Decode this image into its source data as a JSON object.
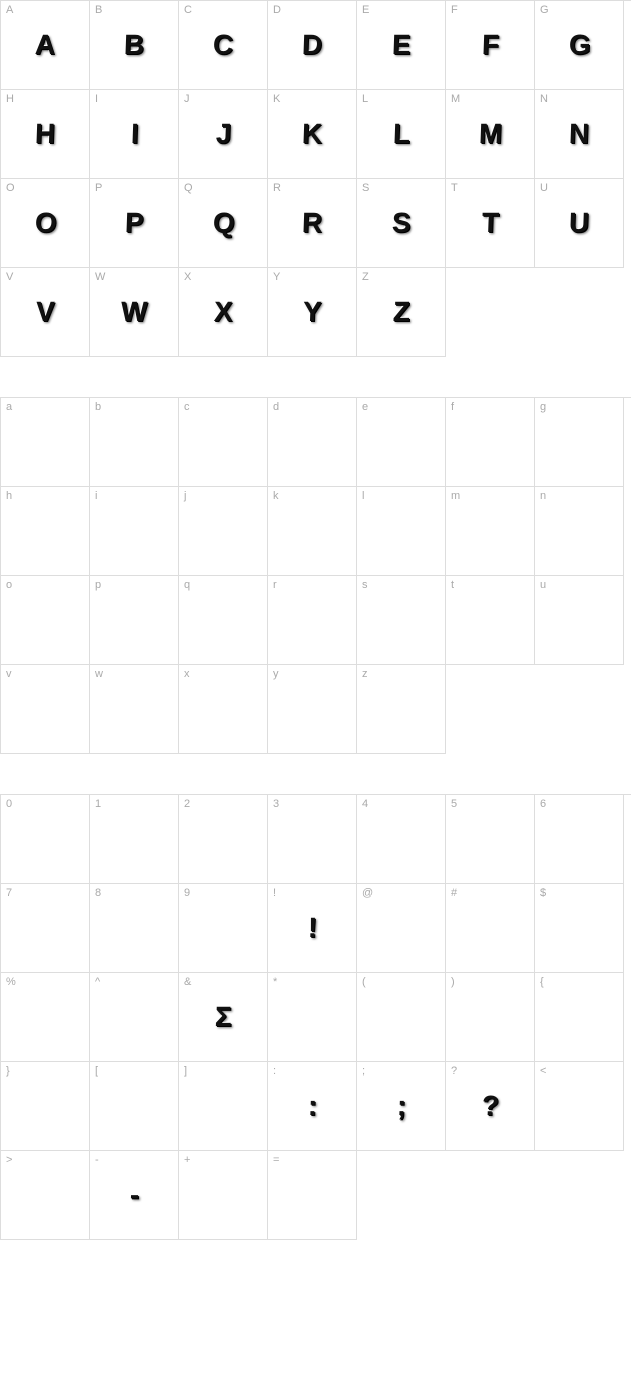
{
  "colors": {
    "border": "#dddddd",
    "label": "#aaaaaa",
    "glyph": "#111111",
    "background": "#ffffff"
  },
  "layout": {
    "columns": 7,
    "cell_size": 89,
    "label_fontsize": 11,
    "glyph_fontsize": 28,
    "section_gap": 40
  },
  "sections": [
    {
      "id": "uppercase",
      "cells": [
        {
          "label": "A",
          "glyph": "A",
          "has_glyph": true
        },
        {
          "label": "B",
          "glyph": "B",
          "has_glyph": true
        },
        {
          "label": "C",
          "glyph": "C",
          "has_glyph": true
        },
        {
          "label": "D",
          "glyph": "D",
          "has_glyph": true
        },
        {
          "label": "E",
          "glyph": "E",
          "has_glyph": true
        },
        {
          "label": "F",
          "glyph": "F",
          "has_glyph": true
        },
        {
          "label": "G",
          "glyph": "G",
          "has_glyph": true
        },
        {
          "label": "H",
          "glyph": "H",
          "has_glyph": true
        },
        {
          "label": "I",
          "glyph": "I",
          "has_glyph": true
        },
        {
          "label": "J",
          "glyph": "J",
          "has_glyph": true
        },
        {
          "label": "K",
          "glyph": "K",
          "has_glyph": true
        },
        {
          "label": "L",
          "glyph": "L",
          "has_glyph": true
        },
        {
          "label": "M",
          "glyph": "M",
          "has_glyph": true
        },
        {
          "label": "N",
          "glyph": "N",
          "has_glyph": true
        },
        {
          "label": "O",
          "glyph": "O",
          "has_glyph": true
        },
        {
          "label": "P",
          "glyph": "P",
          "has_glyph": true
        },
        {
          "label": "Q",
          "glyph": "Q",
          "has_glyph": true
        },
        {
          "label": "R",
          "glyph": "R",
          "has_glyph": true
        },
        {
          "label": "S",
          "glyph": "S",
          "has_glyph": true
        },
        {
          "label": "T",
          "glyph": "T",
          "has_glyph": true
        },
        {
          "label": "U",
          "glyph": "U",
          "has_glyph": true
        },
        {
          "label": "V",
          "glyph": "V",
          "has_glyph": true
        },
        {
          "label": "W",
          "glyph": "W",
          "has_glyph": true
        },
        {
          "label": "X",
          "glyph": "X",
          "has_glyph": true
        },
        {
          "label": "Y",
          "glyph": "Y",
          "has_glyph": true
        },
        {
          "label": "Z",
          "glyph": "Z",
          "has_glyph": true
        }
      ]
    },
    {
      "id": "lowercase",
      "cells": [
        {
          "label": "a",
          "glyph": "",
          "has_glyph": false
        },
        {
          "label": "b",
          "glyph": "",
          "has_glyph": false
        },
        {
          "label": "c",
          "glyph": "",
          "has_glyph": false
        },
        {
          "label": "d",
          "glyph": "",
          "has_glyph": false
        },
        {
          "label": "e",
          "glyph": "",
          "has_glyph": false
        },
        {
          "label": "f",
          "glyph": "",
          "has_glyph": false
        },
        {
          "label": "g",
          "glyph": "",
          "has_glyph": false
        },
        {
          "label": "h",
          "glyph": "",
          "has_glyph": false
        },
        {
          "label": "i",
          "glyph": "",
          "has_glyph": false
        },
        {
          "label": "j",
          "glyph": "",
          "has_glyph": false
        },
        {
          "label": "k",
          "glyph": "",
          "has_glyph": false
        },
        {
          "label": "l",
          "glyph": "",
          "has_glyph": false
        },
        {
          "label": "m",
          "glyph": "",
          "has_glyph": false
        },
        {
          "label": "n",
          "glyph": "",
          "has_glyph": false
        },
        {
          "label": "o",
          "glyph": "",
          "has_glyph": false
        },
        {
          "label": "p",
          "glyph": "",
          "has_glyph": false
        },
        {
          "label": "q",
          "glyph": "",
          "has_glyph": false
        },
        {
          "label": "r",
          "glyph": "",
          "has_glyph": false
        },
        {
          "label": "s",
          "glyph": "",
          "has_glyph": false
        },
        {
          "label": "t",
          "glyph": "",
          "has_glyph": false
        },
        {
          "label": "u",
          "glyph": "",
          "has_glyph": false
        },
        {
          "label": "v",
          "glyph": "",
          "has_glyph": false
        },
        {
          "label": "w",
          "glyph": "",
          "has_glyph": false
        },
        {
          "label": "x",
          "glyph": "",
          "has_glyph": false
        },
        {
          "label": "y",
          "glyph": "",
          "has_glyph": false
        },
        {
          "label": "z",
          "glyph": "",
          "has_glyph": false
        }
      ]
    },
    {
      "id": "symbols",
      "cells": [
        {
          "label": "0",
          "glyph": "",
          "has_glyph": false
        },
        {
          "label": "1",
          "glyph": "",
          "has_glyph": false
        },
        {
          "label": "2",
          "glyph": "",
          "has_glyph": false
        },
        {
          "label": "3",
          "glyph": "",
          "has_glyph": false
        },
        {
          "label": "4",
          "glyph": "",
          "has_glyph": false
        },
        {
          "label": "5",
          "glyph": "",
          "has_glyph": false
        },
        {
          "label": "6",
          "glyph": "",
          "has_glyph": false
        },
        {
          "label": "7",
          "glyph": "",
          "has_glyph": false
        },
        {
          "label": "8",
          "glyph": "",
          "has_glyph": false
        },
        {
          "label": "9",
          "glyph": "",
          "has_glyph": false
        },
        {
          "label": "!",
          "glyph": "!",
          "has_glyph": true
        },
        {
          "label": "@",
          "glyph": "",
          "has_glyph": false
        },
        {
          "label": "#",
          "glyph": "",
          "has_glyph": false
        },
        {
          "label": "$",
          "glyph": "",
          "has_glyph": false
        },
        {
          "label": "%",
          "glyph": "",
          "has_glyph": false
        },
        {
          "label": "^",
          "glyph": "",
          "has_glyph": false
        },
        {
          "label": "&",
          "glyph": "Σ",
          "has_glyph": true
        },
        {
          "label": "*",
          "glyph": "",
          "has_glyph": false
        },
        {
          "label": "(",
          "glyph": "",
          "has_glyph": false
        },
        {
          "label": ")",
          "glyph": "",
          "has_glyph": false
        },
        {
          "label": "{",
          "glyph": "",
          "has_glyph": false
        },
        {
          "label": "}",
          "glyph": "",
          "has_glyph": false
        },
        {
          "label": "[",
          "glyph": "",
          "has_glyph": false
        },
        {
          "label": "]",
          "glyph": "",
          "has_glyph": false
        },
        {
          "label": ":",
          "glyph": ":",
          "has_glyph": true
        },
        {
          "label": ";",
          "glyph": ";",
          "has_glyph": true
        },
        {
          "label": "?",
          "glyph": "?",
          "has_glyph": true
        },
        {
          "label": "<",
          "glyph": "",
          "has_glyph": false
        },
        {
          "label": ">",
          "glyph": "",
          "has_glyph": false
        },
        {
          "label": "-",
          "glyph": "-",
          "has_glyph": true
        },
        {
          "label": "+",
          "glyph": "",
          "has_glyph": false
        },
        {
          "label": "=",
          "glyph": "",
          "has_glyph": false
        }
      ]
    }
  ]
}
